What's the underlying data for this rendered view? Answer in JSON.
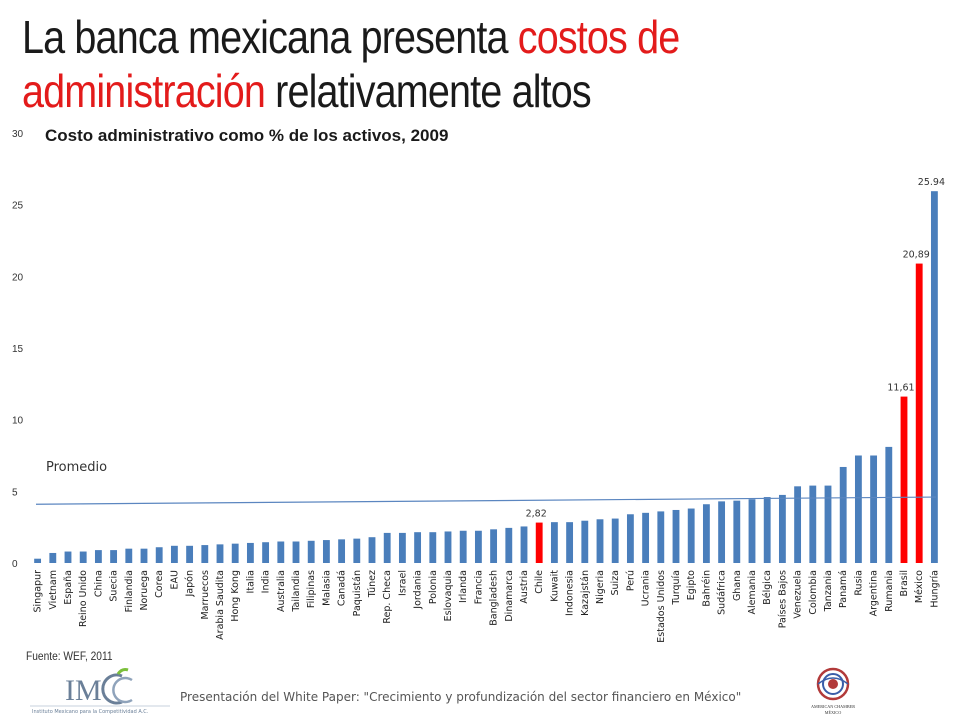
{
  "title": {
    "part1": "La banca mexicana presenta ",
    "part2": "costos de",
    "part3": "administración",
    "part4": " relativamente altos"
  },
  "source": "Fuente: WEF, 2011",
  "footer": "Presentación del White Paper: \"Crecimiento y profundización del sector financiero en México\"",
  "logos": {
    "imco": "IMCO",
    "imco_subtitle": "Instituto Mexicano para la Competitividad A.C.",
    "amcham": "AMERICAN CHAMBER MÉXICO"
  },
  "chart_data": {
    "type": "bar",
    "title": "Costo administrativo como % de los activos, 2009",
    "xlabel": "",
    "ylabel": "",
    "ylim": [
      0,
      30
    ],
    "yticks": [
      0,
      5,
      10,
      15,
      20,
      25,
      30
    ],
    "grid": false,
    "bar_color": "#4a7ebb",
    "highlight_color": "#ff0000",
    "categories": [
      "Singapur",
      "Vietnam",
      "España",
      "Reino Unido",
      "China",
      "Suecia",
      "Finlandia",
      "Noruega",
      "Corea",
      "EAU",
      "Japón",
      "Marruecos",
      "Arabia Saudita",
      "Hong Kong",
      "Italia",
      "India",
      "Australia",
      "Tailandia",
      "Filipinas",
      "Malasia",
      "Canadá",
      "Paquistán",
      "Túnez",
      "Rep. Checa",
      "Israel",
      "Jordania",
      "Polonia",
      "Eslovaquia",
      "Irlanda",
      "Francia",
      "Bangladesh",
      "Dinamarca",
      "Austria",
      "Chile",
      "Kuwait",
      "Indonesia",
      "Kazajstán",
      "Nigeria",
      "Suiza",
      "Perú",
      "Ucrania",
      "Estados Unidos",
      "Turquía",
      "Egipto",
      "Bahréin",
      "Sudáfrica",
      "Ghana",
      "Alemania",
      "Bélgica",
      "Países Bajos",
      "Venezuela",
      "Colombia",
      "Tanzania",
      "Panamá",
      "Rusia",
      "Argentina",
      "Rumania",
      "Brasil",
      "México",
      "Hungría"
    ],
    "values": [
      0.3,
      0.7,
      0.8,
      0.8,
      0.9,
      0.9,
      1.0,
      1.0,
      1.1,
      1.2,
      1.2,
      1.25,
      1.3,
      1.35,
      1.4,
      1.45,
      1.5,
      1.5,
      1.55,
      1.6,
      1.65,
      1.7,
      1.8,
      2.1,
      2.1,
      2.15,
      2.15,
      2.2,
      2.25,
      2.25,
      2.35,
      2.45,
      2.55,
      2.82,
      2.85,
      2.85,
      2.95,
      3.05,
      3.1,
      3.4,
      3.5,
      3.6,
      3.7,
      3.8,
      4.1,
      4.3,
      4.35,
      4.45,
      4.6,
      4.75,
      5.35,
      5.4,
      5.4,
      6.7,
      7.5,
      7.5,
      8.1,
      11.61,
      20.89,
      25.94
    ],
    "highlighted": [
      "Chile",
      "Brasil",
      "México"
    ],
    "data_labels": [
      {
        "category": "Chile",
        "text": "2,82"
      },
      {
        "category": "Brasil",
        "text": "11,61"
      },
      {
        "category": "México",
        "text": "20,89"
      },
      {
        "category": "Hungría",
        "text": "25.94"
      }
    ],
    "reference_line": {
      "label": "Promedio",
      "start": 4.1,
      "end": 4.6,
      "color": "#5b86c0"
    }
  }
}
